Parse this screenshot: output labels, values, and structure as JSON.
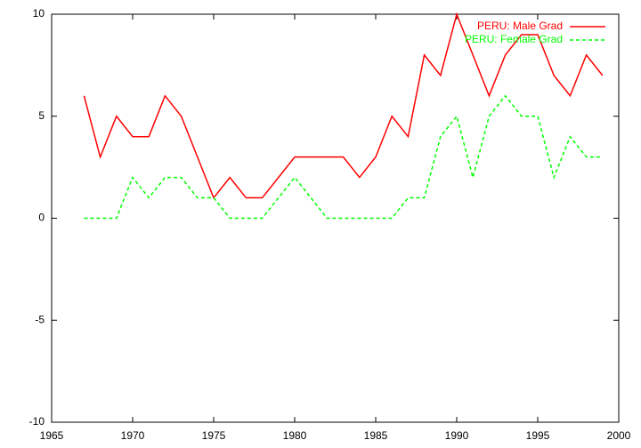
{
  "chart_data": {
    "type": "line",
    "x": [
      1967,
      1968,
      1969,
      1970,
      1971,
      1972,
      1973,
      1974,
      1975,
      1976,
      1977,
      1978,
      1979,
      1980,
      1981,
      1982,
      1983,
      1984,
      1985,
      1986,
      1987,
      1988,
      1989,
      1990,
      1991,
      1992,
      1993,
      1994,
      1995,
      1996,
      1997,
      1998,
      1999
    ],
    "series": [
      {
        "name": "PERU: Male Grad",
        "color": "#ff0000",
        "dashed": false,
        "values": [
          6,
          3,
          5,
          4,
          4,
          6,
          5,
          3,
          1,
          2,
          1,
          1,
          2,
          3,
          3,
          3,
          3,
          2,
          3,
          5,
          4,
          8,
          7,
          10,
          8,
          6,
          8,
          9,
          9,
          7,
          6,
          8,
          7
        ]
      },
      {
        "name": "PERU: Female Grad",
        "color": "#00ff00",
        "dashed": true,
        "values": [
          0,
          0,
          0,
          2,
          1,
          2,
          2,
          1,
          1,
          0,
          0,
          0,
          1,
          2,
          1,
          0,
          0,
          0,
          0,
          0,
          1,
          1,
          4,
          5,
          2,
          5,
          6,
          5,
          5,
          2,
          4,
          3,
          3
        ]
      }
    ],
    "xlim": [
      1965,
      2000
    ],
    "xticks": [
      1965,
      1970,
      1975,
      1980,
      1985,
      1990,
      1995,
      2000
    ],
    "ylim": [
      -10,
      10
    ],
    "yticks": [
      -10,
      -5,
      0,
      5,
      10
    ],
    "grid": false,
    "legend_position": "top-right"
  }
}
